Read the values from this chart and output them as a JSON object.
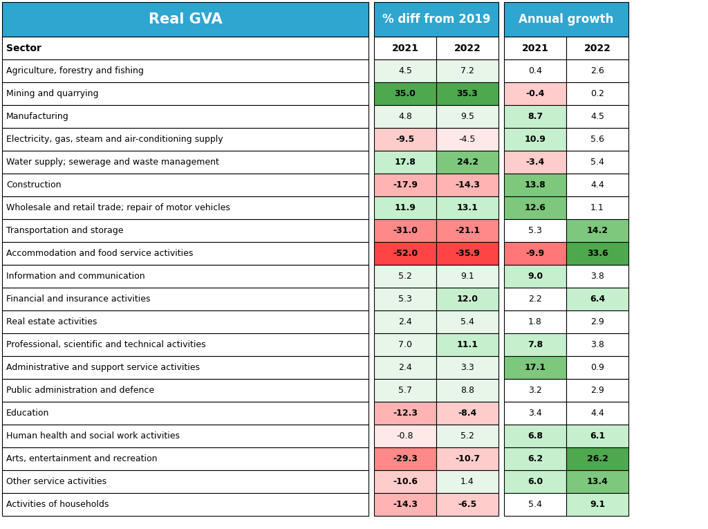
{
  "sectors": [
    "Agriculture, forestry and fishing",
    "Mining and quarrying",
    "Manufacturing",
    "Electricity, gas, steam and air-conditioning supply",
    "Water supply; sewerage and waste management",
    "Construction",
    "Wholesale and retail trade; repair of motor vehicles",
    "Transportation and storage",
    "Accommodation and food service activities",
    "Information and communication",
    "Financial and insurance activities",
    "Real estate activities",
    "Professional, scientific and technical activities",
    "Administrative and support service activities",
    "Public administration and defence",
    "Education",
    "Human health and social work activities",
    "Arts, entertainment and recreation",
    "Other service activities",
    "Activities of households"
  ],
  "pct_diff_2021": [
    4.5,
    35.0,
    4.8,
    -9.5,
    17.8,
    -17.9,
    11.9,
    -31.0,
    -52.0,
    5.2,
    5.3,
    2.4,
    7.0,
    2.4,
    5.7,
    -12.3,
    -0.8,
    -29.3,
    -10.6,
    -14.3
  ],
  "pct_diff_2022": [
    7.2,
    35.3,
    9.5,
    -4.5,
    24.2,
    -14.3,
    13.1,
    -21.1,
    -35.9,
    9.1,
    12.0,
    5.4,
    11.1,
    3.3,
    8.8,
    -8.4,
    5.2,
    -10.7,
    1.4,
    -6.5
  ],
  "annual_2021": [
    0.4,
    -0.4,
    8.7,
    10.9,
    -3.4,
    13.8,
    12.6,
    5.3,
    -9.9,
    9.0,
    2.2,
    1.8,
    7.8,
    17.1,
    3.2,
    3.4,
    6.8,
    6.2,
    6.0,
    5.4
  ],
  "annual_2022": [
    2.6,
    0.2,
    4.5,
    5.6,
    5.4,
    4.4,
    1.1,
    14.2,
    33.6,
    3.8,
    6.4,
    2.9,
    3.8,
    0.9,
    2.9,
    4.4,
    6.1,
    26.2,
    13.4,
    9.1
  ],
  "header_bg": "#2EA6D0",
  "col1_header": "Real GVA",
  "col2_header": "% diff from 2019",
  "col3_header": "Annual growth",
  "sector_header": "Sector"
}
